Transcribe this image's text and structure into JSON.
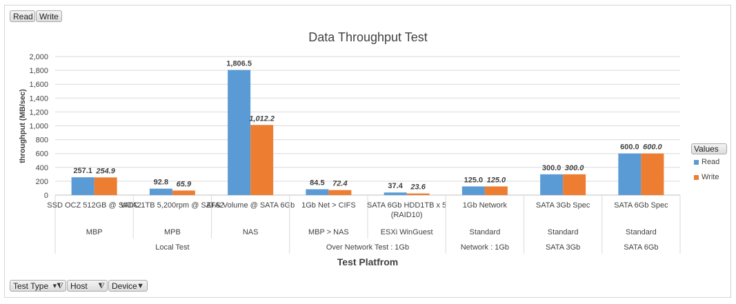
{
  "toolbar": {
    "read_label": "Read",
    "write_label": "Write",
    "test_type_label": "Test Type",
    "host_label": "Host",
    "device_label": "Device"
  },
  "legend": {
    "header": "Values",
    "items": [
      "Read",
      "Write"
    ]
  },
  "colors": {
    "read": "#5b9bd5",
    "write": "#ed7d31"
  },
  "chart_data": {
    "type": "bar",
    "title": "Data Throughput Test",
    "ylabel": "throughput (MB/sec)",
    "xlabel": "Test Platfrom",
    "ylim": [
      0,
      2000
    ],
    "yticks": [
      "0",
      "200",
      "400",
      "600",
      "800",
      "1,000",
      "1,200",
      "1,400",
      "1,600",
      "1,800",
      "2,000"
    ],
    "legend_position": "right",
    "categories": [
      {
        "device": "SSD OCZ 512GB @ SATA2",
        "host": "MBP",
        "test_type": "Local Test"
      },
      {
        "device": "WDC 1TB 5,200rpm @ SATA2",
        "host": "MPB",
        "test_type": "Local Test"
      },
      {
        "device": "ZFS Volume @ SATA 6Gb",
        "host": "NAS",
        "test_type": "Local Test"
      },
      {
        "device": "1Gb Net > CIFS",
        "host": "MBP > NAS",
        "test_type": "Over Network Test : 1Gb"
      },
      {
        "device": "SATA 6Gb HDD1TB x 5 (RAID10)",
        "host": "ESXi WinGuest",
        "test_type": "Over Network Test : 1Gb"
      },
      {
        "device": "1Gb Network",
        "host": "Standard",
        "test_type": "Network : 1Gb"
      },
      {
        "device": "SATA 3Gb Spec",
        "host": "Standard",
        "test_type": "SATA 3Gb"
      },
      {
        "device": "SATA 6Gb Spec",
        "host": "Standard",
        "test_type": "SATA 6Gb"
      }
    ],
    "series": [
      {
        "name": "Read",
        "values": [
          257.1,
          92.8,
          1806.5,
          84.5,
          37.4,
          125.0,
          300.0,
          600.0
        ],
        "labels": [
          "257.1",
          "92.8",
          "1,806.5",
          "84.5",
          "37.4",
          "125.0",
          "300.0",
          "600.0"
        ]
      },
      {
        "name": "Write",
        "values": [
          254.9,
          65.9,
          1012.2,
          72.4,
          23.6,
          125.0,
          300.0,
          600.0
        ],
        "labels": [
          "254.9",
          "65.9",
          "1,012.2",
          "72.4",
          "23.6",
          "125.0",
          "300.0",
          "600.0"
        ]
      }
    ]
  }
}
